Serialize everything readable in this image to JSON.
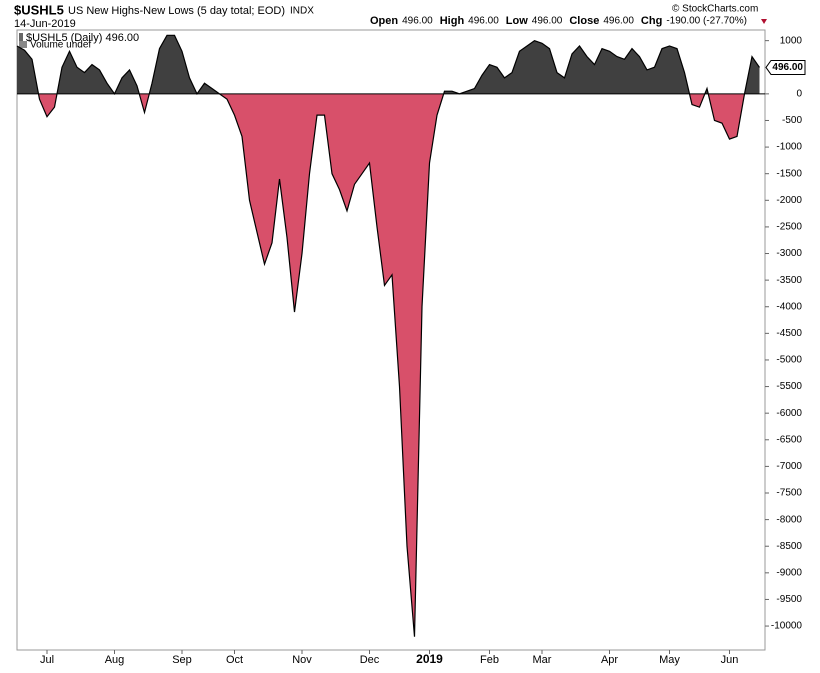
{
  "chart_data": {
    "type": "area",
    "title": "$USHL5",
    "subtitle": "US New Highs-New Lows (5 day total; EOD)",
    "exchange": "INDX",
    "date": "14-Jun-2019",
    "quote": [
      {
        "label": "Open",
        "value": "496.00"
      },
      {
        "label": "High",
        "value": "496.00"
      },
      {
        "label": "Low",
        "value": "496.00"
      },
      {
        "label": "Close",
        "value": "496.00"
      },
      {
        "label": "Chg",
        "value": "-190.00 (-27.70%)"
      }
    ],
    "legend": "$USHL5 (Daily) 496.00",
    "volume_note": "Volume undef",
    "watermark": "© StockCharts.com",
    "last_value_label": "496.00",
    "positive_color": "#404040",
    "negative_color": "#d8506a",
    "line_color": "#000000",
    "categories": [
      null,
      null,
      null,
      null,
      "Jul",
      null,
      null,
      null,
      null,
      null,
      null,
      null,
      null,
      "Aug",
      null,
      null,
      null,
      null,
      null,
      null,
      null,
      null,
      "Sep",
      null,
      null,
      null,
      null,
      null,
      null,
      "Oct",
      null,
      null,
      null,
      null,
      null,
      null,
      null,
      null,
      "Nov",
      null,
      null,
      null,
      null,
      null,
      null,
      null,
      null,
      "Dec",
      null,
      null,
      null,
      null,
      null,
      null,
      null,
      "2019",
      null,
      null,
      null,
      null,
      null,
      null,
      null,
      "Feb",
      null,
      null,
      null,
      null,
      null,
      null,
      "Mar",
      null,
      null,
      null,
      null,
      null,
      null,
      null,
      null,
      "Apr",
      null,
      null,
      null,
      null,
      null,
      null,
      null,
      "May",
      null,
      null,
      null,
      null,
      null,
      null,
      null,
      "Jun",
      null,
      null,
      null,
      null
    ],
    "values": [
      900,
      820,
      650,
      -100,
      -430,
      -250,
      500,
      800,
      500,
      400,
      550,
      450,
      200,
      0,
      300,
      450,
      150,
      -350,
      200,
      850,
      1100,
      1100,
      800,
      300,
      0,
      200,
      100,
      0,
      -100,
      -400,
      -800,
      -2000,
      -2600,
      -3200,
      -2800,
      -1600,
      -2700,
      -4100,
      -3000,
      -1500,
      -400,
      -400,
      -1500,
      -1800,
      -2200,
      -1700,
      -1500,
      -1300,
      -2500,
      -3600,
      -3400,
      -5500,
      -8500,
      -10200,
      -4000,
      -1300,
      -400,
      50,
      50,
      0,
      50,
      100,
      350,
      550,
      500,
      300,
      400,
      800,
      900,
      1000,
      950,
      850,
      400,
      300,
      750,
      900,
      700,
      550,
      850,
      800,
      700,
      650,
      850,
      700,
      450,
      500,
      850,
      900,
      850,
      400,
      -200,
      -250,
      100,
      -500,
      -550,
      -850,
      -800,
      0,
      700,
      496
    ],
    "ylim": [
      -10450,
      1200
    ],
    "yticks": [
      1000,
      0,
      -500,
      -1000,
      -1500,
      -2000,
      -2500,
      -3000,
      -3500,
      -4000,
      -4500,
      -5000,
      -5500,
      -6000,
      -6500,
      -7000,
      -7500,
      -8000,
      -8500,
      -9000,
      -9500,
      -10000
    ],
    "grid": false
  }
}
